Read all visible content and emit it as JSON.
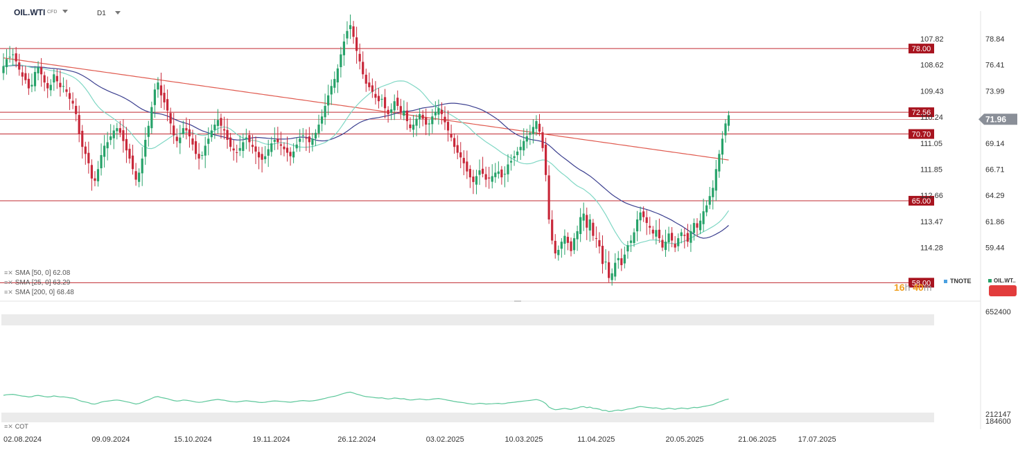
{
  "header": {
    "symbol": "OIL.WTI",
    "symbol_type": "CFD",
    "timeframe": "D1"
  },
  "indicators": [
    {
      "label": "SMA [50, 0] 62.08",
      "color": "#3b3f8f"
    },
    {
      "label": "SMA [25, 0] 63.29",
      "color": "#7fd7c4"
    },
    {
      "label": "SMA [200, 0] 68.48",
      "color": "#e05a4f"
    }
  ],
  "timer": {
    "hours": "16",
    "h_unit": "h",
    "minutes": "40",
    "m_unit": "m"
  },
  "legend_right": {
    "tnote": "TNOTE",
    "oil": "OIL.WT.."
  },
  "cot_label": "COT",
  "colors": {
    "up": "#26a269",
    "down": "#c8283a",
    "level": "#c0282f",
    "sma50": "#3b3f8f",
    "sma25": "#7fd7c4",
    "sma200": "#e05a4f",
    "price_tag": "#8a8f98"
  },
  "chart_data": {
    "type": "candlestick",
    "y_axis_right": {
      "range": [
        56.6,
        81.2
      ],
      "ticks": [
        "78.84",
        "76.41",
        "73.99",
        "71.56",
        "69.14",
        "66.71",
        "64.29",
        "61.86",
        "59.44"
      ]
    },
    "y_axis_left": {
      "ticks": [
        "107.82",
        "108.62",
        "109.43",
        "110.24",
        "111.05",
        "111.85",
        "112.66",
        "113.47",
        "114.28"
      ]
    },
    "current_price": "71.96",
    "x_ticks": [
      {
        "label": "02.08.2024",
        "x": 0
      },
      {
        "label": "09.09.2024",
        "x": 28
      },
      {
        "label": "15.10.2024",
        "x": 54
      },
      {
        "label": "19.11.2024",
        "x": 79
      },
      {
        "label": "26.12.2024",
        "x": 106
      },
      {
        "label": "03.02.2025",
        "x": 134
      },
      {
        "label": "10.03.2025",
        "x": 159
      },
      {
        "label": "11.04.2025",
        "x": 182
      },
      {
        "label": "20.05.2025",
        "x": 210
      },
      {
        "label": "21.06.2025",
        "x": 233
      },
      {
        "label": "17.07.2025",
        "x": 252
      }
    ],
    "levels": [
      {
        "label": "78.00",
        "value": 78.0
      },
      {
        "label": "72.56",
        "value": 72.56
      },
      {
        "label": "70.70",
        "value": 70.7
      },
      {
        "label": "65.00",
        "value": 65.0
      },
      {
        "label": "58.00",
        "value": 58.0
      }
    ],
    "close": [
      76.5,
      77.1,
      77.3,
      77.5,
      76.9,
      76.2,
      75.6,
      75.3,
      74.6,
      74.9,
      76.0,
      76.4,
      75.8,
      75.1,
      74.6,
      74.9,
      75.8,
      75.2,
      74.7,
      74.8,
      74.3,
      73.7,
      73.3,
      72.4,
      70.7,
      69.6,
      69.0,
      68.2,
      66.9,
      66.7,
      67.7,
      68.9,
      69.7,
      70.0,
      70.5,
      71.0,
      71.2,
      70.8,
      70.1,
      69.3,
      68.6,
      67.7,
      66.8,
      67.4,
      68.6,
      70.2,
      71.4,
      73.0,
      74.5,
      75.1,
      74.0,
      73.4,
      72.7,
      71.6,
      70.6,
      70.1,
      70.4,
      71.2,
      71.0,
      70.5,
      69.8,
      69.0,
      68.6,
      68.9,
      69.7,
      70.3,
      71.0,
      71.5,
      71.9,
      71.4,
      71.0,
      70.2,
      69.6,
      69.3,
      69.1,
      69.5,
      70.0,
      70.4,
      70.0,
      69.6,
      69.2,
      68.7,
      68.5,
      68.8,
      69.4,
      69.9,
      70.2,
      70.0,
      69.7,
      69.4,
      69.1,
      68.8,
      69.2,
      69.8,
      70.3,
      70.6,
      70.3,
      70.0,
      70.3,
      70.8,
      71.5,
      72.2,
      73.1,
      74.0,
      74.8,
      75.4,
      76.3,
      77.5,
      78.6,
      79.5,
      80.0,
      79.0,
      77.8,
      76.9,
      75.8,
      75.0,
      74.7,
      74.3,
      73.8,
      73.5,
      73.7,
      72.9,
      72.4,
      72.8,
      73.5,
      73.1,
      72.5,
      72.7,
      71.8,
      71.2,
      71.5,
      72.0,
      72.4,
      72.0,
      71.5,
      71.6,
      72.2,
      72.6,
      72.9,
      72.4,
      71.7,
      71.0,
      70.4,
      69.6,
      69.1,
      68.7,
      68.2,
      67.5,
      67.0,
      66.6,
      67.1,
      67.6,
      67.3,
      66.8,
      66.9,
      67.1,
      67.4,
      67.5,
      67.0,
      67.3,
      68.1,
      68.4,
      68.8,
      69.2,
      69.6,
      70.1,
      70.5,
      70.8,
      71.3,
      71.8,
      70.9,
      69.5,
      67.2,
      63.4,
      61.6,
      60.5,
      60.8,
      61.5,
      62.0,
      61.4,
      60.7,
      61.8,
      62.4,
      63.6,
      63.9,
      62.7,
      63.4,
      62.0,
      61.8,
      61.1,
      59.6,
      59.8,
      58.4,
      58.8,
      59.7,
      60.1,
      59.5,
      60.4,
      61.2,
      61.6,
      62.3,
      63.4,
      64.0,
      63.6,
      63.1,
      62.7,
      62.2,
      62.5,
      61.8,
      61.0,
      61.5,
      62.2,
      61.6,
      61.0,
      61.8,
      62.3,
      62.0,
      61.5,
      62.4,
      63.1,
      62.7,
      63.3,
      64.1,
      64.6,
      65.4,
      66.1,
      67.7,
      69.0,
      70.3,
      71.6,
      72.3
    ]
  },
  "cot_chart": {
    "axis_ticks": [
      "652400",
      "212147",
      "184600"
    ]
  }
}
